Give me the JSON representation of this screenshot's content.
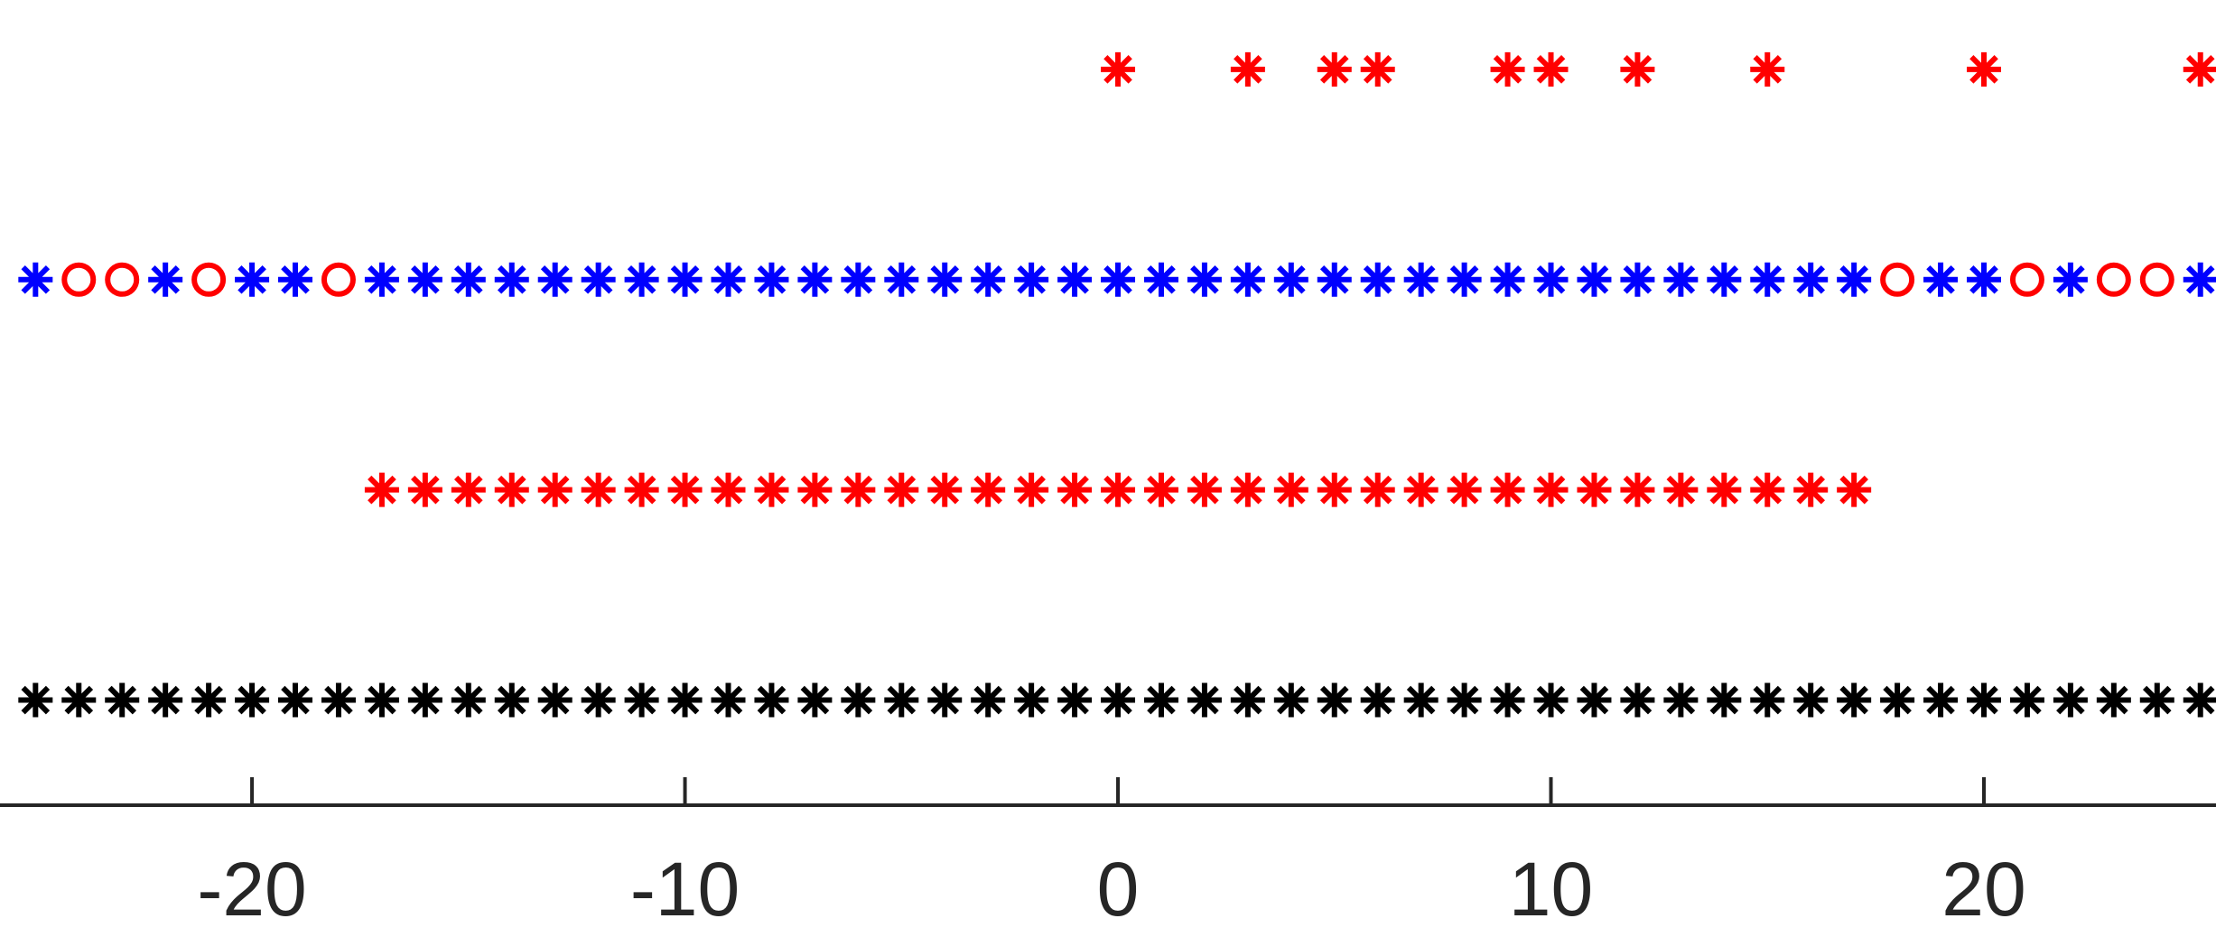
{
  "chart_data": {
    "type": "scatter",
    "xlim": [
      -25.82,
      25.36
    ],
    "ylim": [
      -0.5,
      3.33
    ],
    "xticks": [
      -20,
      -10,
      0,
      10,
      20
    ],
    "series": [
      {
        "color": "#000000",
        "marker": "asterisk",
        "y": 0,
        "x": [
          -25,
          -24,
          -23,
          -22,
          -21,
          -20,
          -19,
          -18,
          -17,
          -16,
          -15,
          -14,
          -13,
          -12,
          -11,
          -10,
          -9,
          -8,
          -7,
          -6,
          -5,
          -4,
          -3,
          -2,
          -1,
          0,
          1,
          2,
          3,
          4,
          5,
          6,
          7,
          8,
          9,
          10,
          11,
          12,
          13,
          14,
          15,
          16,
          17,
          18,
          19,
          20,
          21,
          22,
          23,
          24,
          25
        ]
      },
      {
        "color": "#ff0000",
        "marker": "asterisk",
        "y": 1,
        "x": [
          -17,
          -16,
          -15,
          -14,
          -13,
          -12,
          -11,
          -10,
          -9,
          -8,
          -7,
          -6,
          -5,
          -4,
          -3,
          -2,
          -1,
          0,
          1,
          2,
          3,
          4,
          5,
          6,
          7,
          8,
          9,
          10,
          11,
          12,
          13,
          14,
          15,
          16,
          17
        ]
      },
      {
        "color": "#0000ff",
        "marker": "asterisk",
        "y": 2,
        "x": [
          -25,
          -22,
          -20,
          -19,
          -17,
          -16,
          -15,
          -14,
          -13,
          -12,
          -11,
          -10,
          -9,
          -8,
          -7,
          -6,
          -5,
          -4,
          -3,
          -2,
          -1,
          0,
          1,
          2,
          3,
          4,
          5,
          6,
          7,
          8,
          9,
          10,
          11,
          12,
          13,
          14,
          15,
          16,
          17,
          19,
          20,
          22,
          25
        ]
      },
      {
        "color": "#ff0000",
        "marker": "circle",
        "y": 2,
        "x": [
          -24,
          -23,
          -21,
          -18,
          18,
          21,
          23,
          24
        ]
      },
      {
        "color": "#ff0000",
        "marker": "asterisk",
        "y": 3,
        "x": [
          0,
          3,
          5,
          6,
          9,
          10,
          12,
          15,
          20,
          25
        ]
      }
    ]
  }
}
